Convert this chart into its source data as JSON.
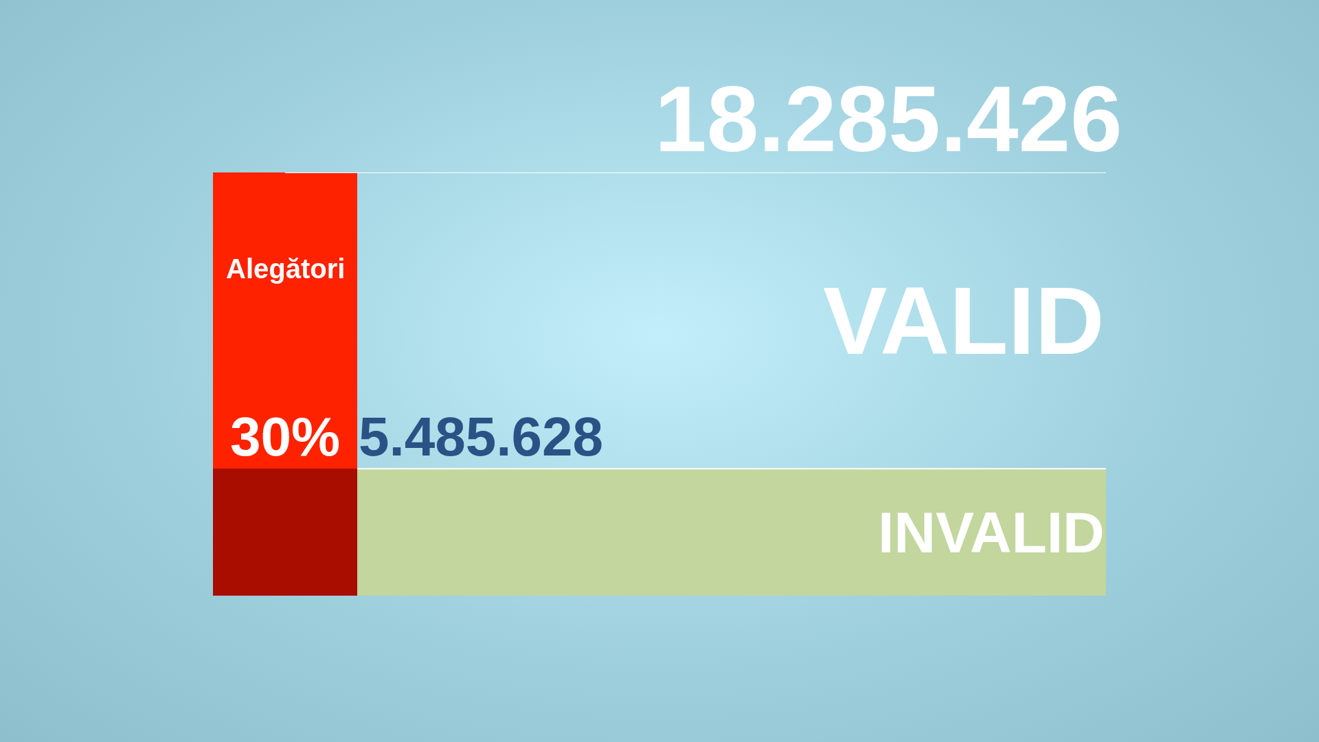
{
  "chart_data": {
    "type": "bar",
    "stacked": true,
    "categories": [
      "Alegători"
    ],
    "series": [
      {
        "color": "#a80d00",
        "values": [
          5485628
        ]
      },
      {
        "color": "#ff2200",
        "values": [
          12799798
        ]
      }
    ],
    "ylim": [
      0,
      18285426
    ],
    "ref_lines": [
      {
        "axis": "y",
        "value": 18285426,
        "label": "18.285.426",
        "color": "#ffffff"
      },
      {
        "axis": "y",
        "value": 5485628,
        "label": "5.485.628",
        "color": "#ffffff"
      }
    ],
    "bands": [
      {
        "axis": "y",
        "from": 0,
        "to": 5485628,
        "label": "INVALID",
        "color": "#c2d69e"
      }
    ],
    "annotations": [
      {
        "text": "30%",
        "x": "Alegători",
        "y": 5485628
      },
      "VALID"
    ]
  }
}
